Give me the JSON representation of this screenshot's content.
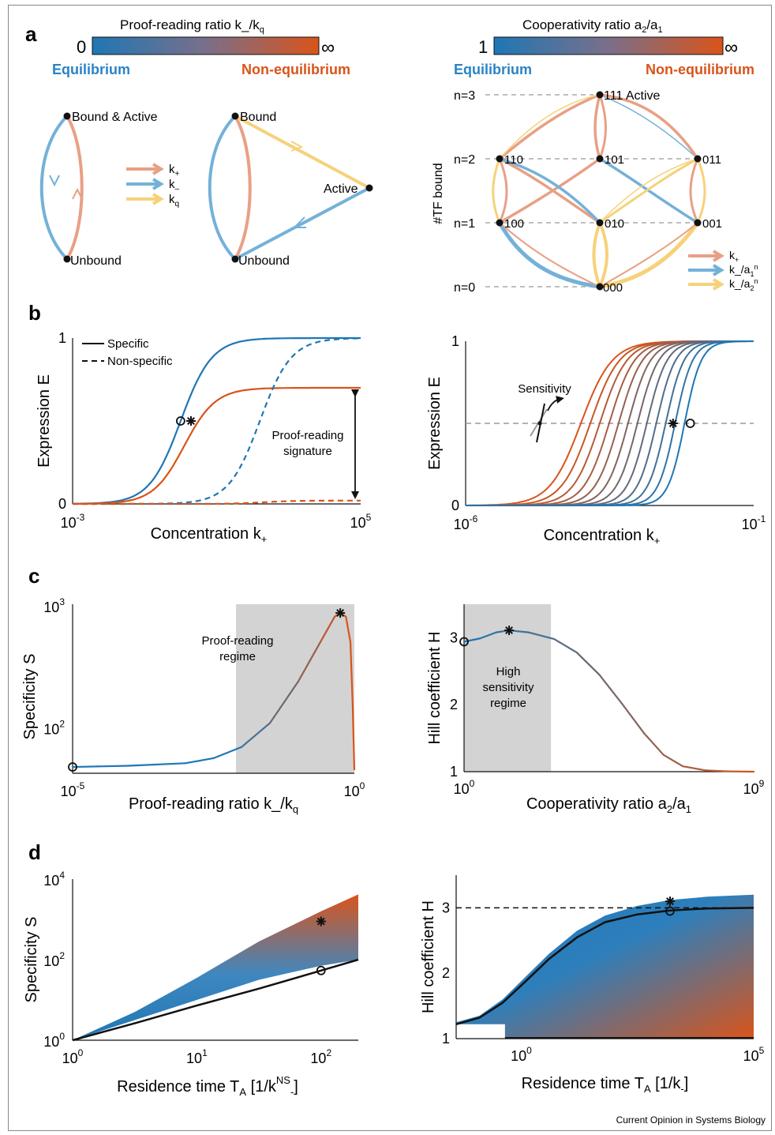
{
  "figure": {
    "panel_labels": [
      "a",
      "b",
      "c",
      "d"
    ],
    "credit": "Current Opinion in Systems Biology"
  },
  "colors": {
    "equilibrium": "#1f77b4",
    "nonequilibrium": "#d9541a",
    "k_plus": "#e8a085",
    "k_minus": "#74b1d8",
    "k_q": "#f5d27a",
    "grey_region": "#d3d3d3"
  },
  "panel_a": {
    "left": {
      "colorbar_title": "Proof-reading ratio k_/k",
      "colorbar_title_sub": "q",
      "colorbar_min": "0",
      "colorbar_max": "∞",
      "equilibrium_label": "Equilibrium",
      "nonequilibrium_label": "Non-equilibrium",
      "diagram1": {
        "top_node": "Bound & Active",
        "bottom_node": "Unbound"
      },
      "diagram2": {
        "top_node": "Bound",
        "right_node": "Active",
        "bottom_node": "Unbound"
      },
      "legend": [
        {
          "base": "k",
          "sub": "+",
          "color_key": "k_plus"
        },
        {
          "base": "k",
          "sub": "–",
          "color_key": "k_minus"
        },
        {
          "base": "k",
          "sub": "q",
          "color_key": "k_q"
        }
      ]
    },
    "right": {
      "colorbar_title": "Cooperativity ratio a",
      "colorbar_min": "1",
      "colorbar_max": "∞",
      "equilibrium_label": "Equilibrium",
      "nonequilibrium_label": "Non-equilibrium",
      "y_axis_label": "#TF bound",
      "levels": [
        "n=3",
        "n=2",
        "n=1",
        "n=0"
      ],
      "nodes": {
        "top": "111 Active",
        "n2": [
          "110",
          "101",
          "011"
        ],
        "n1": [
          "100",
          "010",
          "001"
        ],
        "bottom": "000"
      },
      "legend": [
        {
          "text": "k+",
          "color_key": "k_plus"
        },
        {
          "text": "k_/a1n",
          "color_key": "k_minus"
        },
        {
          "text": "k_/a2n",
          "color_key": "k_q"
        }
      ]
    }
  },
  "chart_data": [
    {
      "id": "b-left",
      "type": "line",
      "xscale": "log",
      "xlim_exp": [
        -3,
        5
      ],
      "ylim": [
        0,
        1
      ],
      "xlabel": "Concentration k",
      "xlabel_sub": "+",
      "ylabel": "Expression E",
      "y_ticks": [
        "0",
        "1"
      ],
      "x_ticks": [
        {
          "base": "10",
          "exp": "-3"
        },
        {
          "base": "10",
          "exp": "5"
        }
      ],
      "legend": [
        "Specific",
        "Non-specific"
      ],
      "annotation": "Proof-reading signature",
      "series": [
        {
          "style": "solid",
          "color_key": "equilibrium",
          "max": 1.0,
          "half_log": 0.0,
          "n": 1
        },
        {
          "style": "solid",
          "color_key": "nonequilibrium",
          "max": 0.7,
          "half_log": 0.1,
          "n": 1
        },
        {
          "style": "dashed",
          "color_key": "equilibrium",
          "max": 1.0,
          "half_log": 2.2,
          "n": 1
        },
        {
          "style": "dashed",
          "color_key": "nonequilibrium",
          "max": 0.02,
          "half_log": 2.3,
          "n": 1
        }
      ],
      "markers": [
        {
          "shape": "circle",
          "x_log": 0.0,
          "y": 0.5
        },
        {
          "shape": "star",
          "x_log": 0.2,
          "y": 0.5
        }
      ]
    },
    {
      "id": "b-right",
      "type": "line",
      "xscale": "log",
      "xlim_exp": [
        -6,
        -1
      ],
      "ylim": [
        0,
        1
      ],
      "xlabel": "Concentration k",
      "xlabel_sub": "+",
      "ylabel": "Expression E",
      "y_ticks": [
        "0",
        "1"
      ],
      "x_ticks": [
        {
          "base": "10",
          "exp": "-6"
        },
        {
          "base": "10",
          "exp": "-1"
        }
      ],
      "annotation": "Sensitivity",
      "half_line_y": 0.5,
      "family": {
        "count": 12,
        "half_log_from": -4.0,
        "half_log_to": -2.2,
        "n_from": 1.6,
        "n_to": 3.0
      },
      "markers": [
        {
          "shape": "star",
          "x_log": -2.4,
          "y": 0.5
        },
        {
          "shape": "circle",
          "x_log": -2.1,
          "y": 0.5
        }
      ]
    },
    {
      "id": "c-left",
      "type": "line",
      "xscale": "log",
      "yscale": "log",
      "xlim_exp": [
        -5,
        0
      ],
      "ylim_exp": [
        1.65,
        3.0
      ],
      "xlabel": "Proof-reading ratio k_/k",
      "xlabel_sub": "q",
      "ylabel": "Specificity S",
      "y_ticks": [
        {
          "base": "10",
          "exp": "2"
        },
        {
          "base": "10",
          "exp": "3"
        }
      ],
      "x_ticks": [
        {
          "base": "10",
          "exp": "-5"
        },
        {
          "base": "10",
          "exp": "0"
        }
      ],
      "region": {
        "x_exp": [
          -2.1,
          0
        ],
        "label": "Proof-reading regime"
      },
      "points": [
        [
          -5.0,
          1.7
        ],
        [
          -4.0,
          1.71
        ],
        [
          -3.0,
          1.73
        ],
        [
          -2.5,
          1.77
        ],
        [
          -2.0,
          1.86
        ],
        [
          -1.5,
          2.05
        ],
        [
          -1.0,
          2.38
        ],
        [
          -0.6,
          2.7
        ],
        [
          -0.35,
          2.9
        ],
        [
          -0.25,
          2.93
        ],
        [
          -0.15,
          2.9
        ],
        [
          -0.07,
          2.7
        ],
        [
          -0.03,
          2.2
        ],
        [
          0.0,
          1.68
        ]
      ],
      "markers": [
        {
          "shape": "circle",
          "x_log": -5.0,
          "y_log": 1.7
        },
        {
          "shape": "star",
          "x_log": -0.25,
          "y_log": 2.93
        }
      ]
    },
    {
      "id": "c-right",
      "type": "line",
      "xscale": "log",
      "xlim_exp": [
        0,
        9
      ],
      "ylim": [
        1,
        3.5
      ],
      "xlabel": "Cooperativity ratio a",
      "ylabel": "Hill coefficient H",
      "y_ticks": [
        "1",
        "2",
        "3"
      ],
      "x_ticks": [
        {
          "base": "10",
          "exp": "0"
        },
        {
          "base": "10",
          "exp": "9"
        }
      ],
      "region": {
        "x_exp": [
          0,
          2.7
        ],
        "label": "High sensitivity regime"
      },
      "points": [
        [
          0.0,
          2.94
        ],
        [
          0.5,
          2.99
        ],
        [
          1.0,
          3.08
        ],
        [
          1.4,
          3.11
        ],
        [
          2.0,
          3.08
        ],
        [
          2.8,
          2.98
        ],
        [
          3.5,
          2.78
        ],
        [
          4.2,
          2.45
        ],
        [
          4.9,
          2.02
        ],
        [
          5.6,
          1.57
        ],
        [
          6.2,
          1.25
        ],
        [
          6.8,
          1.08
        ],
        [
          7.5,
          1.02
        ],
        [
          8.2,
          1.005
        ],
        [
          9.0,
          1.0
        ]
      ],
      "markers": [
        {
          "shape": "circle",
          "x_log": 0.0,
          "y": 2.94
        },
        {
          "shape": "star",
          "x_log": 1.4,
          "y": 3.11
        }
      ]
    },
    {
      "id": "d-left",
      "type": "area",
      "xscale": "log",
      "yscale": "log",
      "xlim_exp": [
        0,
        2.3
      ],
      "ylim_exp": [
        0,
        4
      ],
      "xlabel": "Residence time T",
      "xlabel_sub": "A",
      "xlabel_unit": "[1/k",
      "xlabel_unit_sup": "NS",
      "xlabel_unit_sub": "-",
      "ylabel": "Specificity S",
      "y_ticks": [
        {
          "base": "10",
          "exp": "0"
        },
        {
          "base": "10",
          "exp": "2"
        },
        {
          "base": "10",
          "exp": "4"
        }
      ],
      "x_ticks": [
        {
          "base": "10",
          "exp": "0"
        },
        {
          "base": "10",
          "exp": "1"
        },
        {
          "base": "10",
          "exp": "2"
        }
      ],
      "upper_boundary": [
        [
          0.0,
          0.0
        ],
        [
          0.5,
          0.7
        ],
        [
          1.0,
          1.55
        ],
        [
          1.5,
          2.45
        ],
        [
          2.0,
          3.2
        ],
        [
          2.3,
          3.62
        ]
      ],
      "lower_boundary": [
        [
          0.0,
          0.0
        ],
        [
          0.5,
          0.5
        ],
        [
          1.0,
          1.0
        ],
        [
          1.5,
          1.5
        ],
        [
          2.0,
          1.85
        ],
        [
          2.3,
          2.0
        ]
      ],
      "black_line": [
        [
          0.0,
          0.0
        ],
        [
          0.5,
          0.42
        ],
        [
          1.0,
          0.86
        ],
        [
          1.5,
          1.28
        ],
        [
          2.0,
          1.73
        ],
        [
          2.3,
          2.0
        ]
      ],
      "markers": [
        {
          "shape": "star",
          "x_log": 2.0,
          "y_log": 2.95
        },
        {
          "shape": "circle",
          "x_log": 2.0,
          "y_log": 1.73
        }
      ]
    },
    {
      "id": "d-right",
      "type": "area",
      "xscale": "log",
      "xlim_exp": [
        -1.4,
        5
      ],
      "ylim": [
        1,
        3.5
      ],
      "xlabel": "Residence time T",
      "xlabel_sub": "A",
      "xlabel_unit": "[1/k",
      "xlabel_unit_sub": "-",
      "ylabel": "Hill coefficient H",
      "y_ticks": [
        "1",
        "2",
        "3"
      ],
      "x_ticks": [
        {
          "base": "10",
          "exp": "0"
        },
        {
          "base": "10",
          "exp": "5"
        }
      ],
      "dashed_level": 3,
      "upper_boundary": [
        [
          -1.4,
          1.25
        ],
        [
          -0.9,
          1.35
        ],
        [
          -0.4,
          1.6
        ],
        [
          0.1,
          1.95
        ],
        [
          0.6,
          2.3
        ],
        [
          1.2,
          2.65
        ],
        [
          1.8,
          2.88
        ],
        [
          2.5,
          3.03
        ],
        [
          3.2,
          3.12
        ],
        [
          4.0,
          3.17
        ],
        [
          5.0,
          3.2
        ]
      ],
      "black_line": [
        [
          -1.4,
          1.22
        ],
        [
          -0.9,
          1.32
        ],
        [
          -0.4,
          1.55
        ],
        [
          0.1,
          1.88
        ],
        [
          0.6,
          2.22
        ],
        [
          1.2,
          2.55
        ],
        [
          1.8,
          2.78
        ],
        [
          2.5,
          2.9
        ],
        [
          3.2,
          2.96
        ],
        [
          4.0,
          2.99
        ],
        [
          5.0,
          3.0
        ]
      ],
      "markers": [
        {
          "shape": "star",
          "x_log": 3.2,
          "y": 3.1
        },
        {
          "shape": "circle",
          "x_log": 3.2,
          "y": 2.95
        }
      ]
    }
  ]
}
